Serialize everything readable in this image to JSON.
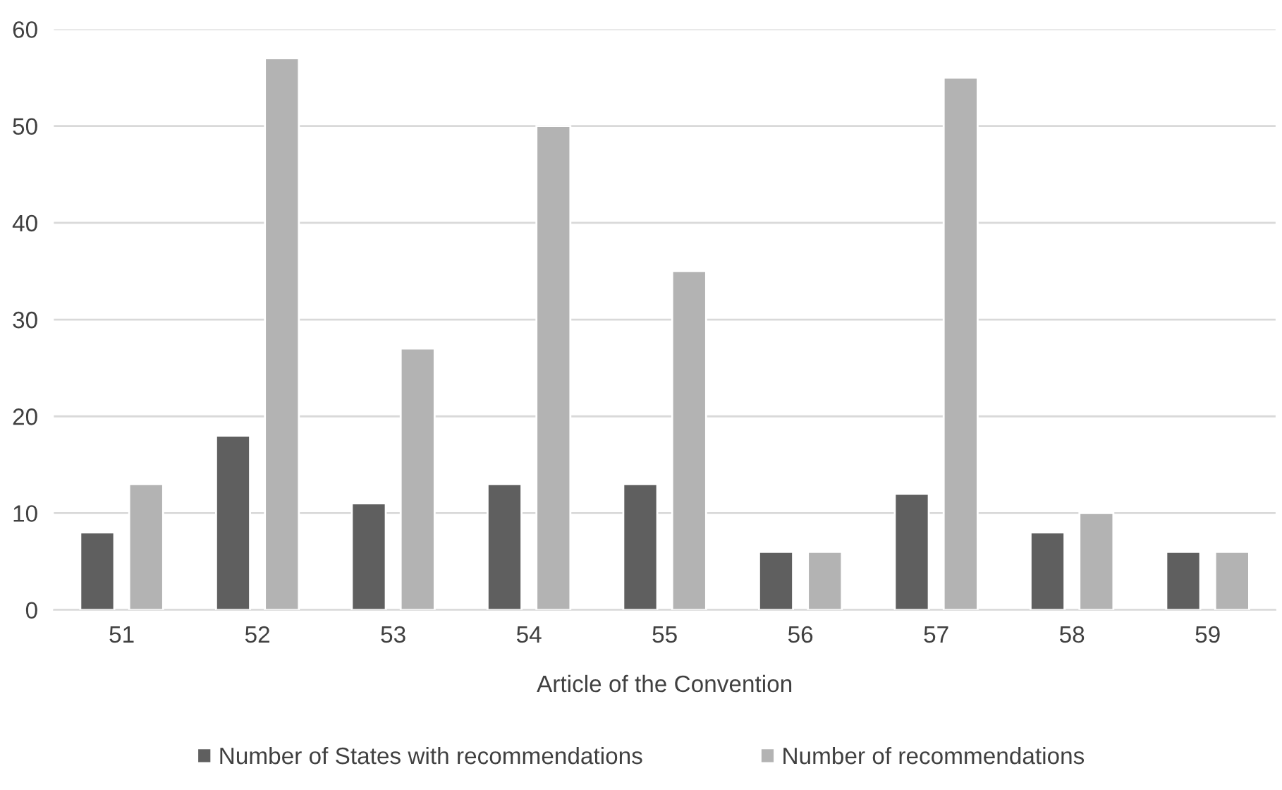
{
  "chart_data": {
    "type": "bar",
    "xlabel": "Article of the Convention",
    "categories": [
      "51",
      "52",
      "53",
      "54",
      "55",
      "56",
      "57",
      "58",
      "59"
    ],
    "series": [
      {
        "name": "Number of States with recommendations",
        "color": "#5f5f5f",
        "values": [
          8,
          18,
          11,
          13,
          13,
          6,
          12,
          8,
          6
        ]
      },
      {
        "name": "Number of recommendations",
        "color": "#b3b3b3",
        "values": [
          13,
          57,
          27,
          50,
          35,
          6,
          55,
          10,
          6
        ]
      }
    ],
    "ylim": [
      0,
      60
    ],
    "yticks": [
      0,
      10,
      20,
      30,
      40,
      50,
      60
    ],
    "grid": "y",
    "legend": "bottom"
  }
}
